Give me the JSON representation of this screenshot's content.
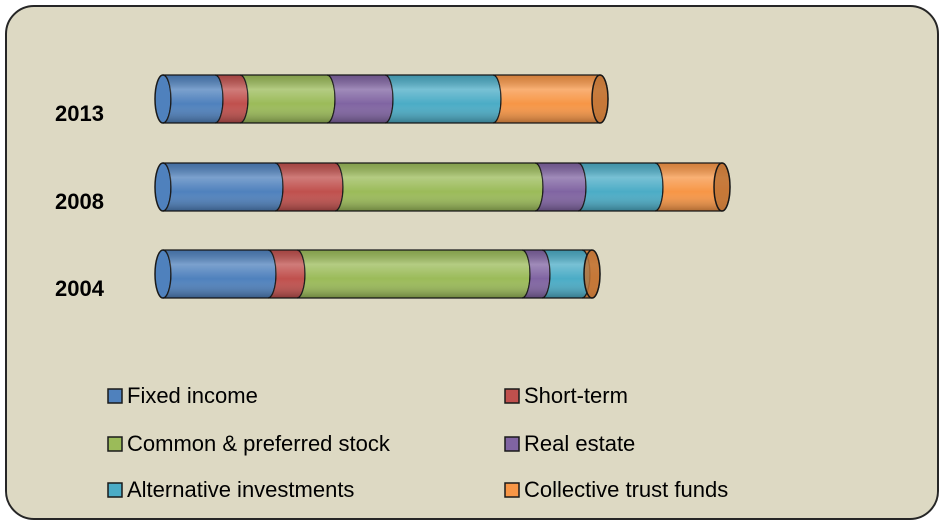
{
  "chart_data": {
    "type": "stacked_cylinder_bar",
    "categories": [
      "2013",
      "2008",
      "2004"
    ],
    "series": [
      {
        "name": "Fixed income",
        "color": "#4f81bd",
        "values": [
          52,
          112,
          105
        ]
      },
      {
        "name": "Short-term",
        "color": "#c0504d",
        "values": [
          25,
          60,
          29
        ]
      },
      {
        "name": "Common & preferred stock",
        "color": "#9bbb59",
        "values": [
          87,
          200,
          225
        ]
      },
      {
        "name": "Real estate",
        "color": "#8064a2",
        "values": [
          58,
          43,
          20
        ]
      },
      {
        "name": "Alternative investments",
        "color": "#4bacc6",
        "values": [
          108,
          77,
          40
        ]
      },
      {
        "name": "Collective trust funds",
        "color": "#f79646",
        "values": [
          107,
          67,
          10
        ]
      }
    ],
    "xlim": [
      0,
      600
    ]
  }
}
